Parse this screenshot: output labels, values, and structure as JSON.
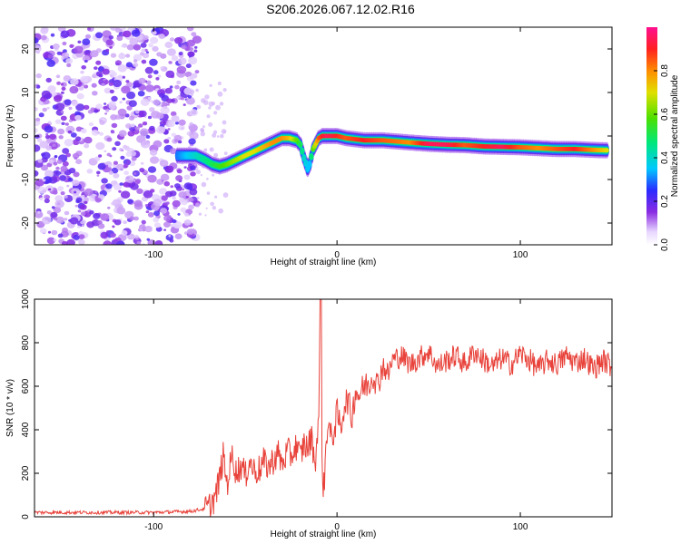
{
  "title": "S206.2026.067.12.02.R16",
  "chart_data": [
    {
      "type": "heatmap",
      "xlabel": "Height of straight line (km)",
      "ylabel": "Frequency (Hz)",
      "xlim": [
        -165,
        150
      ],
      "ylim": [
        -25,
        25
      ],
      "xticks": [
        -100,
        0,
        100
      ],
      "yticks": [
        -20,
        -10,
        0,
        10,
        20
      ],
      "noise_region_x": [
        -165,
        -80
      ],
      "ridge": {
        "x": [
          -87,
          -82,
          -77,
          -72,
          -68,
          -64,
          -60,
          -55,
          -50,
          -45,
          -40,
          -35,
          -30,
          -26,
          -22,
          -20,
          -18,
          -16,
          -15,
          -13,
          -10,
          -8,
          -5,
          0,
          5,
          15,
          25,
          40,
          50,
          60,
          70,
          80,
          90,
          100,
          110,
          120,
          130,
          140,
          148
        ],
        "freq": [
          -4.5,
          -4.5,
          -4.5,
          -5.5,
          -6.5,
          -7,
          -6.5,
          -5.5,
          -4.5,
          -3.5,
          -2.5,
          -1.5,
          -0.5,
          -0.5,
          -1,
          -2,
          -5,
          -7.5,
          -6.5,
          -3,
          -0.5,
          0,
          0,
          0,
          -0.5,
          -1,
          -1,
          -1.5,
          -1.8,
          -2,
          -2.1,
          -2.4,
          -2.5,
          -2.6,
          -2.8,
          -3,
          -3,
          -3.2,
          -3.3
        ],
        "amplitude": [
          0.3,
          0.35,
          0.4,
          0.45,
          0.5,
          0.55,
          0.6,
          0.65,
          0.7,
          0.7,
          0.75,
          0.8,
          0.8,
          0.75,
          0.6,
          0.5,
          0.4,
          0.35,
          0.35,
          0.6,
          0.85,
          0.9,
          0.95,
          0.9,
          0.85,
          0.9,
          0.85,
          0.8,
          0.95,
          0.95,
          0.85,
          0.9,
          0.95,
          0.85,
          0.8,
          0.85,
          0.9,
          0.8,
          0.7
        ]
      },
      "colorbar": {
        "label": "Normalized spectral amplitude",
        "range": [
          0,
          1
        ],
        "ticks": [
          0.0,
          0.2,
          0.4,
          0.6,
          0.8
        ]
      }
    },
    {
      "type": "line",
      "xlabel": "Height of straight line (km)",
      "ylabel": "SNR (10 * v/v)",
      "xlim": [
        -165,
        150
      ],
      "ylim": [
        0,
        1000
      ],
      "xticks": [
        -100,
        0,
        100
      ],
      "yticks": [
        0,
        200,
        400,
        600,
        800,
        1000
      ],
      "series": [
        {
          "name": "SNR",
          "color": "#e8423a",
          "x": [
            -165,
            -140,
            -120,
            -100,
            -80,
            -70,
            -66,
            -64,
            -62,
            -60,
            -57,
            -55,
            -52,
            -50,
            -48,
            -45,
            -42,
            -40,
            -37,
            -35,
            -32,
            -30,
            -27,
            -25,
            -22,
            -20,
            -18,
            -16,
            -14,
            -12,
            -10,
            -9,
            -8,
            -7,
            -6,
            -5,
            -3,
            -1,
            0,
            2,
            4,
            6,
            8,
            10,
            12,
            15,
            18,
            20,
            22,
            25,
            28,
            30,
            35,
            40,
            45,
            50,
            55,
            60,
            65,
            70,
            75,
            80,
            85,
            90,
            95,
            100,
            105,
            110,
            115,
            120,
            125,
            130,
            135,
            140,
            145,
            150
          ],
          "values": [
            20,
            20,
            20,
            20,
            25,
            40,
            100,
            180,
            280,
            150,
            290,
            200,
            240,
            180,
            260,
            210,
            220,
            250,
            230,
            260,
            290,
            240,
            300,
            280,
            330,
            270,
            340,
            310,
            370,
            250,
            420,
            1000,
            180,
            130,
            330,
            440,
            350,
            420,
            480,
            400,
            520,
            540,
            450,
            580,
            560,
            600,
            620,
            660,
            600,
            700,
            650,
            720,
            740,
            700,
            730,
            760,
            690,
            720,
            740,
            700,
            760,
            720,
            690,
            730,
            700,
            750,
            720,
            680,
            720,
            700,
            740,
            710,
            730,
            680,
            720,
            690
          ]
        }
      ]
    }
  ]
}
